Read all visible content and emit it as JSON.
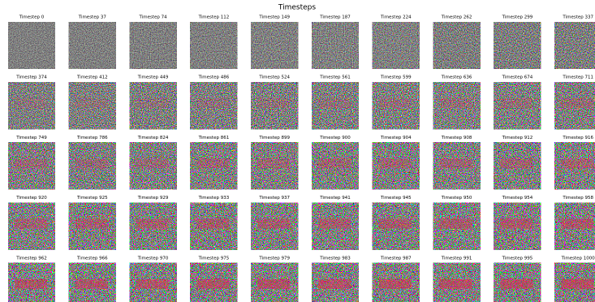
{
  "title": "Timesteps",
  "panels": [
    "Timestep 0",
    "Timestep 37",
    "Timestep 74",
    "Timestep 112",
    "Timestep 149",
    "Timestep 187",
    "Timestep 224",
    "Timestep 262",
    "Timestep 299",
    "Timestep 337",
    "Timestep 374",
    "Timestep 412",
    "Timestep 449",
    "Timestep 486",
    "Timestep 524",
    "Timestep 561",
    "Timestep 599",
    "Timestep 636",
    "Timestep 674",
    "Timestep 711",
    "Timestep 749",
    "Timestep 786",
    "Timestep 824",
    "Timestep 861",
    "Timestep 899",
    "Timestep 900",
    "Timestep 904",
    "Timestep 908",
    "Timestep 912",
    "Timestep 916",
    "Timestep 920",
    "Timestep 925",
    "Timestep 929",
    "Timestep 933",
    "Timestep 937",
    "Timestep 941",
    "Timestep 945",
    "Timestep 950",
    "Timestep 954",
    "Timestep 958",
    "Timestep 962",
    "Timestep 966",
    "Timestep 970",
    "Timestep 975",
    "Timestep 979",
    "Timestep 983",
    "Timestep 987",
    "Timestep 991",
    "Timestep 995",
    "Timestep 1000"
  ]
}
